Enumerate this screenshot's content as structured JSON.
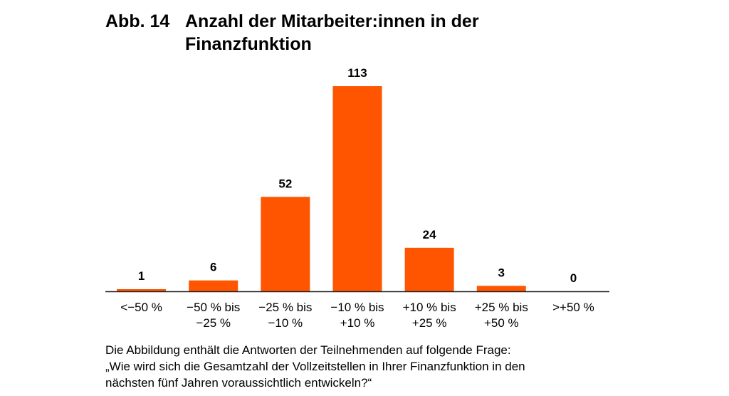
{
  "figure": {
    "number": "Abb. 14",
    "title": "Anzahl der Mitarbeiter:innen in der Finanzfunktion"
  },
  "chart_data": {
    "type": "bar",
    "categories": [
      [
        "<−50 %"
      ],
      [
        "−50 % bis",
        "−25 %"
      ],
      [
        "−25 % bis",
        "−10 %"
      ],
      [
        "−10 % bis",
        "+10 %"
      ],
      [
        "+10 % bis",
        "+25 %"
      ],
      [
        "+25 % bis",
        "+50 %"
      ],
      [
        ">+50 %"
      ]
    ],
    "values": [
      1,
      6,
      52,
      113,
      24,
      3,
      0
    ],
    "ylim": [
      0,
      113
    ],
    "bar_color": "#FF5500",
    "axis_color": "#222222",
    "grid": false
  },
  "note": {
    "line1": "Die Abbildung enthält die Antworten der Teilnehmenden auf folgende Frage:",
    "line2": "„Wie wird sich die Gesamtzahl der Vollzeitstellen in Ihrer Finanzfunktion in den",
    "line3": "nächsten fünf Jahren voraussichtlich entwickeln?“"
  }
}
